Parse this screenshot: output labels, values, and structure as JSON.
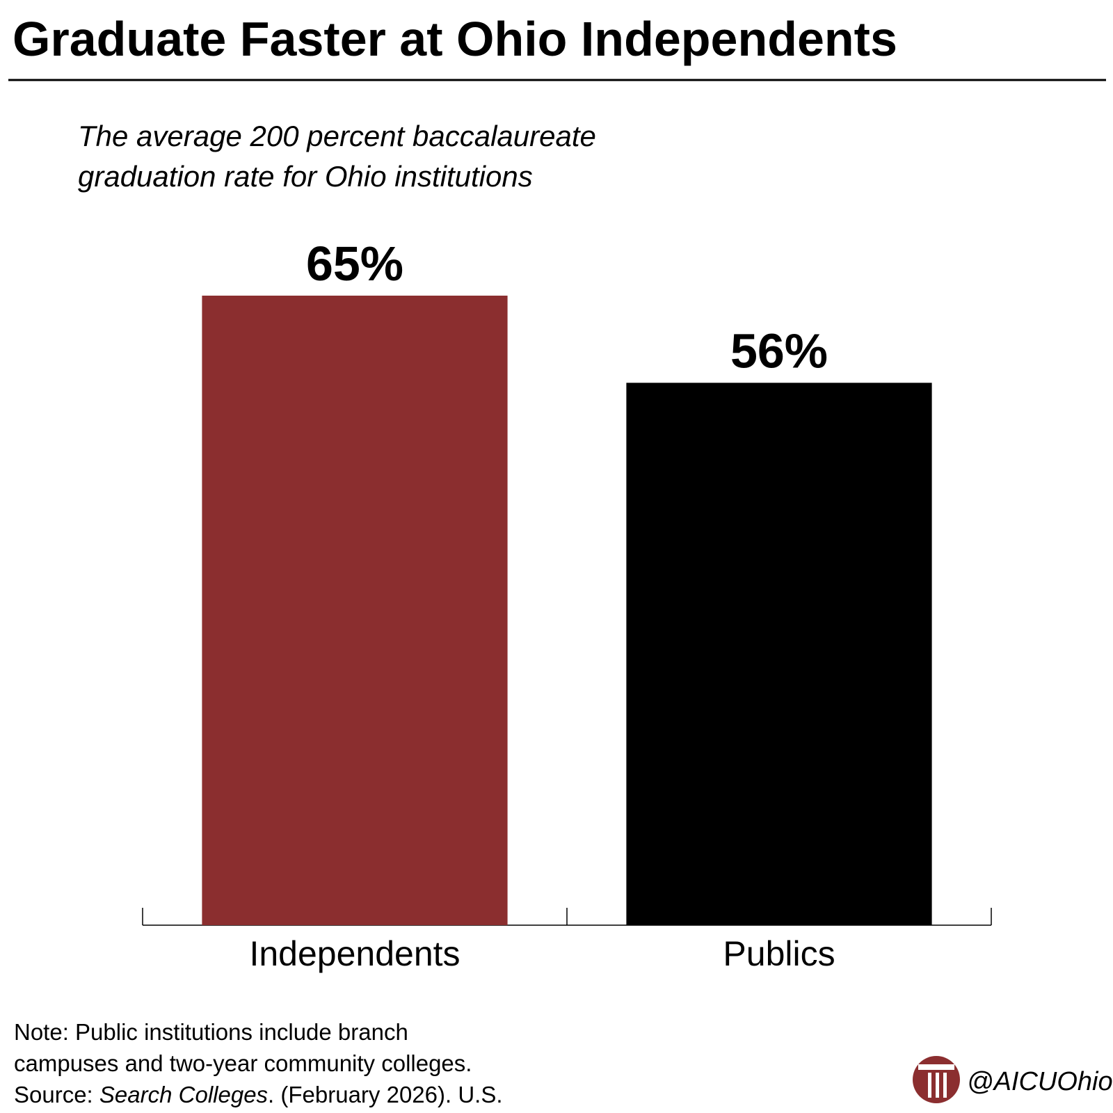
{
  "chart_data": {
    "type": "bar",
    "title": "Graduate Faster at Ohio Independents",
    "subtitle": [
      "The average 200 percent baccalaureate",
      "graduation rate for Ohio institutions"
    ],
    "categories": [
      "Independents",
      "Publics"
    ],
    "values": [
      65,
      56
    ],
    "value_labels": [
      "65%",
      "56%"
    ],
    "colors": [
      "#8b2e2f",
      "#000000"
    ],
    "note": [
      "Note: Public institutions include branch",
      "campuses and two-year community colleges."
    ],
    "source": [
      "Source: ",
      "Search Colleges",
      ". (February 2026). U.S."
    ],
    "handle": "@AICUOhio"
  }
}
